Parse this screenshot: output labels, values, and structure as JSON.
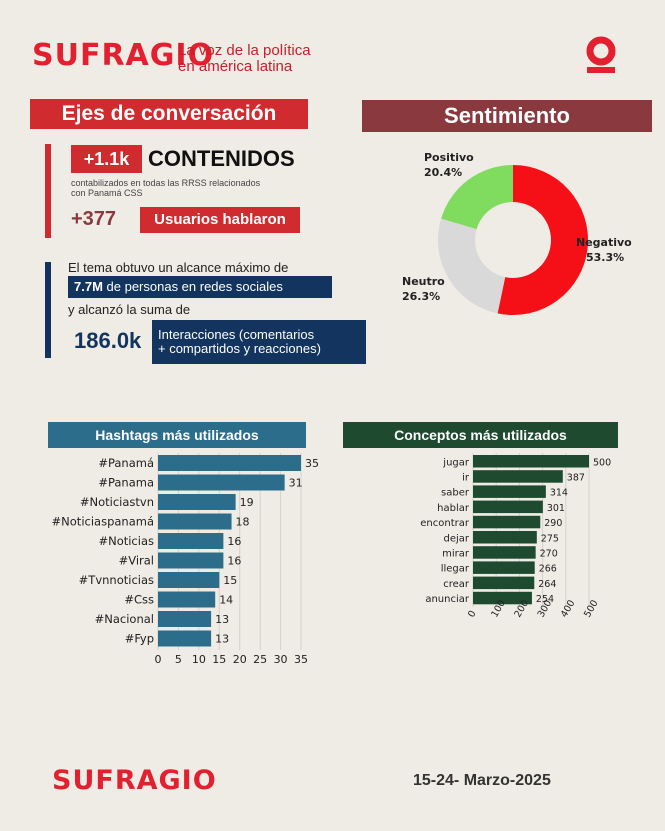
{
  "header": {
    "logo": "SUFRAGIO",
    "tagline_line1": "La voz de la política",
    "tagline_line2": "en américa latina"
  },
  "ejes": {
    "title": "Ejes de conversación",
    "contenidos_value": "+1.1k",
    "contenidos_label": "CONTENIDOS",
    "contenidos_note_line1": "contabilizados en todas las RRSS relacionados",
    "contenidos_note_line2": "con Panamá CSS",
    "usuarios_value": "+377",
    "usuarios_label": "Usuarios hablaron",
    "alcance_line1": "El tema obtuvo un alcance máximo de",
    "alcance_value": "7.7M",
    "alcance_rest": " de personas en redes sociales",
    "alcance_line3": "y alcanzó la suma de",
    "interacciones_value": "186.0k",
    "interacciones_line1": "Interacciones (comentarios",
    "interacciones_line2": "+ compartidos y reacciones)"
  },
  "sentimiento": {
    "title": "Sentimiento"
  },
  "hashtags_title": "Hashtags más utilizados",
  "conceptos_title": "Conceptos más utilizados",
  "footer": {
    "logo": "SUFRAGIO",
    "date": "15-24- Marzo-2025"
  },
  "colors": {
    "negativo": "#f50f16",
    "neutro": "#d9d9d9",
    "positivo": "#7fdc5e",
    "hashtag_bar": "#2d6d8c",
    "concept_bar": "#1e4a30"
  },
  "chart_data": [
    {
      "type": "pie",
      "labels": [
        "Negativo",
        "Neutro",
        "Positivo"
      ],
      "values": [
        53.3,
        26.3,
        20.4
      ],
      "value_labels": [
        "53.3%",
        "26.3%",
        "20.4%"
      ],
      "title": "Sentimiento"
    },
    {
      "type": "bar",
      "title": "Hashtags más utilizados",
      "categories": [
        "#Panamá",
        "#Panama",
        "#Noticiastvn",
        "#Noticiaspanamá",
        "#Noticias",
        "#Viral",
        "#Tvnnoticias",
        "#Css",
        "#Nacional",
        "#Fyp"
      ],
      "values": [
        35,
        31,
        19,
        18,
        16,
        16,
        15,
        14,
        13,
        13
      ],
      "xlim": [
        0,
        35
      ],
      "ticks": [
        "0",
        "5",
        "10",
        "15",
        "20",
        "25",
        "30",
        "35"
      ],
      "grid": true
    },
    {
      "type": "bar",
      "title": "Conceptos más utilizados",
      "categories": [
        "jugar",
        "ir",
        "saber",
        "hablar",
        "encontrar",
        "dejar",
        "mirar",
        "llegar",
        "crear",
        "anunciar"
      ],
      "values": [
        500,
        387,
        314,
        301,
        290,
        275,
        270,
        266,
        264,
        254
      ],
      "xlim": [
        0,
        500
      ],
      "ticks": [
        "0",
        "100",
        "200",
        "300",
        "400",
        "500"
      ],
      "grid": true
    }
  ]
}
